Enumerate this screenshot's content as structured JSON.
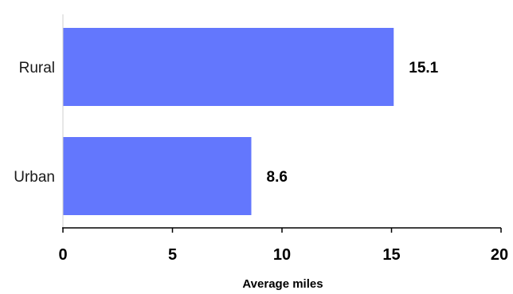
{
  "chart_data": {
    "type": "bar",
    "orientation": "horizontal",
    "categories": [
      "Rural",
      "Urban"
    ],
    "values": [
      15.1,
      8.6
    ],
    "value_labels": [
      "15.1",
      "8.6"
    ],
    "title": "",
    "xlabel": "Average miles",
    "ylabel": "",
    "xlim": [
      0,
      20
    ],
    "x_ticks": [
      0,
      5,
      10,
      15,
      20
    ],
    "x_tick_labels": [
      "0",
      "5",
      "10",
      "15",
      "20"
    ],
    "grid": false,
    "legend": "none",
    "bar_color": "#6377fd"
  }
}
